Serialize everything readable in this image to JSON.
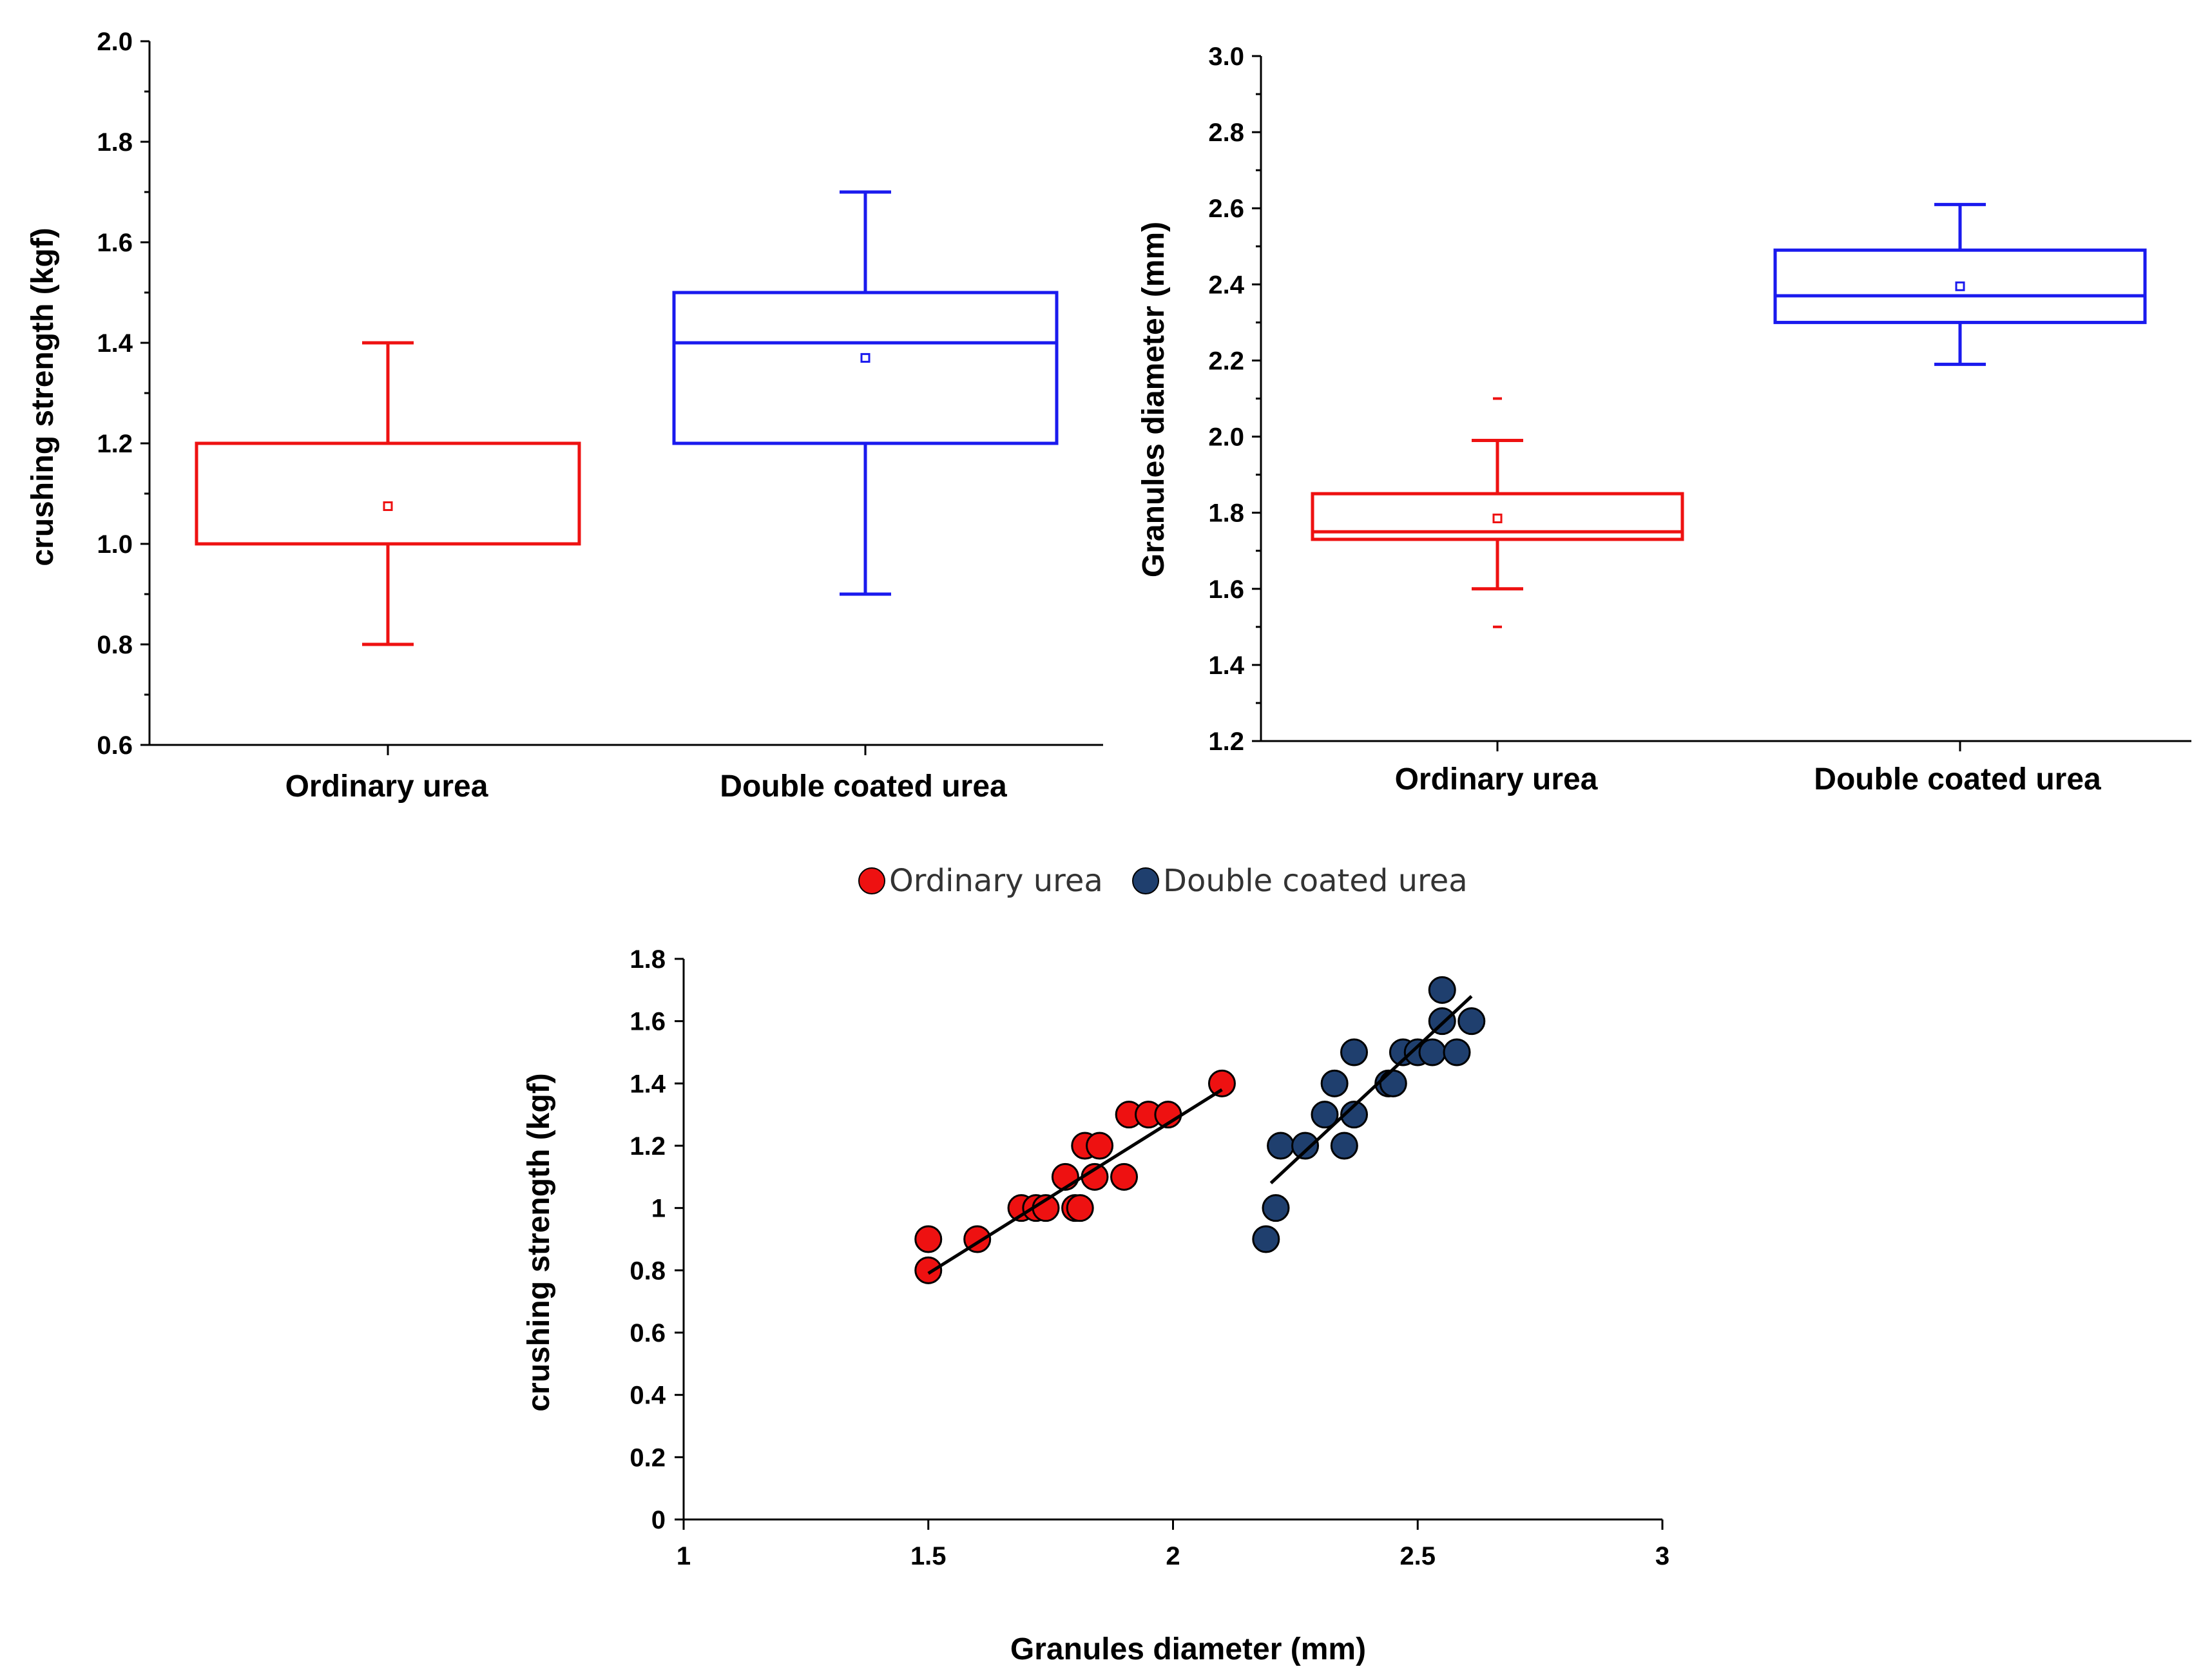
{
  "colors": {
    "ordinary": "#ee1111",
    "double": "#1a1aee",
    "ordinary_dot": "#ee1111",
    "double_dot": "#1f3f6e"
  },
  "chart_data": [
    {
      "type": "box",
      "name": "crushing-strength-box",
      "ylabel": "crushing strength (kgf)",
      "ylim": [
        0.6,
        2.0
      ],
      "yticks": [
        "0.6",
        "0.8",
        "1.0",
        "1.2",
        "1.4",
        "1.6",
        "1.8",
        "2.0"
      ],
      "categories": [
        "Ordinary urea",
        "Double coated urea"
      ],
      "boxes": [
        {
          "min": 0.8,
          "q1": 1.0,
          "median": 1.0,
          "q3": 1.2,
          "max": 1.4,
          "mean": 1.075,
          "outliers": []
        },
        {
          "min": 0.9,
          "q1": 1.2,
          "median": 1.4,
          "q3": 1.5,
          "max": 1.7,
          "mean": 1.37,
          "outliers": []
        }
      ]
    },
    {
      "type": "box",
      "name": "granules-diameter-box",
      "ylabel": "Granules diameter (mm)",
      "ylim": [
        1.2,
        3.0
      ],
      "yticks": [
        "1.2",
        "1.4",
        "1.6",
        "1.8",
        "2.0",
        "2.2",
        "2.4",
        "2.6",
        "2.8",
        "3.0"
      ],
      "categories": [
        "Ordinary urea",
        "Double coated urea"
      ],
      "boxes": [
        {
          "min": 1.6,
          "q1": 1.73,
          "median": 1.75,
          "q3": 1.85,
          "max": 1.99,
          "mean": 1.785,
          "outliers": [
            1.5,
            2.1
          ]
        },
        {
          "min": 2.19,
          "q1": 2.3,
          "median": 2.37,
          "q3": 2.49,
          "max": 2.61,
          "mean": 2.395,
          "outliers": []
        }
      ]
    },
    {
      "type": "scatter",
      "name": "strength-vs-diameter-scatter",
      "xlabel": "Granules diameter (mm)",
      "ylabel": "crushing strength (kgf)",
      "xlim": [
        1,
        3
      ],
      "ylim": [
        0,
        1.8
      ],
      "xticks": [
        "1",
        "1.5",
        "2",
        "2.5",
        "3"
      ],
      "yticks": [
        "0",
        "0.2",
        "0.4",
        "0.6",
        "0.8",
        "1",
        "1.2",
        "1.4",
        "1.6",
        "1.8"
      ],
      "series": [
        {
          "name": "Ordinary urea",
          "x": [
            1.5,
            1.5,
            1.6,
            1.69,
            1.72,
            1.74,
            1.78,
            1.8,
            1.81,
            1.82,
            1.84,
            1.85,
            1.9,
            1.91,
            1.95,
            1.99,
            2.1
          ],
          "y": [
            0.8,
            0.9,
            0.9,
            1.0,
            1.0,
            1.0,
            1.1,
            1.0,
            1.0,
            1.2,
            1.1,
            1.2,
            1.1,
            1.3,
            1.3,
            1.3,
            1.4
          ],
          "trend": [
            [
              1.5,
              0.79
            ],
            [
              2.1,
              1.38
            ]
          ]
        },
        {
          "name": "Double coated urea",
          "x": [
            2.19,
            2.21,
            2.22,
            2.27,
            2.31,
            2.33,
            2.35,
            2.37,
            2.37,
            2.44,
            2.45,
            2.47,
            2.5,
            2.53,
            2.55,
            2.55,
            2.58,
            2.61
          ],
          "y": [
            0.9,
            1.0,
            1.2,
            1.2,
            1.3,
            1.4,
            1.2,
            1.3,
            1.5,
            1.4,
            1.4,
            1.5,
            1.5,
            1.5,
            1.6,
            1.7,
            1.5,
            1.6
          ],
          "trend": [
            [
              2.2,
              1.08
            ],
            [
              2.61,
              1.68
            ]
          ]
        }
      ]
    }
  ]
}
